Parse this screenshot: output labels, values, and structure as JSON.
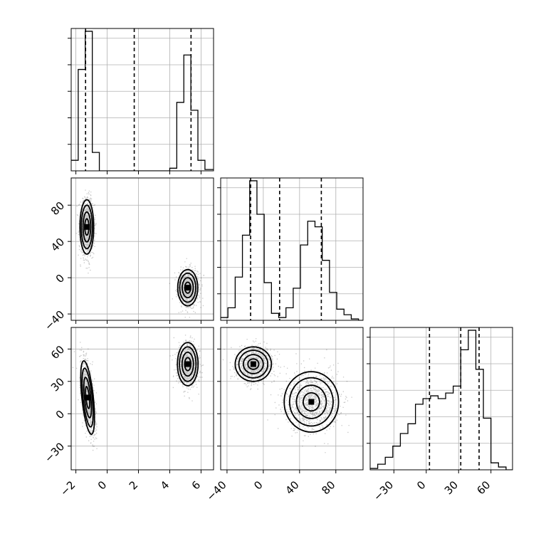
{
  "chart_data": {
    "type": "corner",
    "parameters": [
      {
        "range": [
          -2.3,
          6.8
        ],
        "ticks": [
          -2,
          0,
          2,
          4,
          6
        ],
        "tick_labels": [
          "−2",
          "0",
          "2",
          "4",
          "6"
        ]
      },
      {
        "range": [
          -47,
          110
        ],
        "ticks": [
          -40,
          0,
          40,
          80
        ],
        "tick_labels": [
          "−40",
          "0",
          "40",
          "80"
        ]
      },
      {
        "range": [
          -52,
          80
        ],
        "ticks": [
          -30,
          0,
          30,
          60
        ],
        "tick_labels": [
          "−30",
          "0",
          "30",
          "60"
        ]
      }
    ],
    "histograms": [
      {
        "param": 0,
        "edges": [
          -2.3,
          -1.85,
          -1.4,
          -0.95,
          -0.5,
          -0.05,
          0.4,
          0.85,
          1.3,
          1.75,
          2.2,
          2.65,
          3.1,
          3.55,
          4.0,
          4.45,
          4.9,
          5.35,
          5.8,
          6.25,
          6.8
        ],
        "counts": [
          0.08,
          0.77,
          1.06,
          0.14,
          0,
          0,
          0,
          0,
          0,
          0,
          0,
          0,
          0,
          0,
          0.02,
          0.52,
          0.88,
          0.46,
          0.08,
          0.01
        ],
        "quantiles": [
          -1.38,
          1.73,
          5.36
        ]
      },
      {
        "param": 1,
        "edges": [
          -47,
          -39,
          -31,
          -23,
          -15,
          -7,
          1,
          9,
          17,
          25,
          33,
          41,
          49,
          57,
          65,
          73,
          81,
          89,
          97,
          105,
          110
        ],
        "counts": [
          0.02,
          0.09,
          0.31,
          0.61,
          1.0,
          0.76,
          0.27,
          0.05,
          0.02,
          0.09,
          0.23,
          0.54,
          0.71,
          0.67,
          0.43,
          0.2,
          0.08,
          0.04,
          0.01,
          0.0
        ],
        "quantiles": [
          -14,
          18,
          64
        ]
      },
      {
        "param": 2,
        "edges": [
          -52,
          -45,
          -38,
          -31,
          -24,
          -17,
          -10,
          -3,
          4,
          11,
          18,
          25,
          32,
          39,
          46,
          53,
          60,
          67,
          74,
          80
        ],
        "counts": [
          0.01,
          0.04,
          0.09,
          0.17,
          0.26,
          0.33,
          0.47,
          0.51,
          0.53,
          0.51,
          0.55,
          0.6,
          0.86,
          1.0,
          0.72,
          0.37,
          0.05,
          0.02,
          0.0
        ],
        "quantiles": [
          3,
          32,
          49
        ]
      }
    ],
    "panels_2d": [
      {
        "x_param": 0,
        "y_param": 1,
        "modes": [
          {
            "cx": -1.3,
            "cy": 56,
            "sx": 0.22,
            "sy": 15,
            "rho": 0
          },
          {
            "cx": 5.15,
            "cy": -11,
            "sx": 0.32,
            "sy": 10,
            "rho": 0
          }
        ]
      },
      {
        "x_param": 0,
        "y_param": 2,
        "modes": [
          {
            "cx": -1.25,
            "cy": 15,
            "sx": 0.22,
            "sy": 17,
            "rho": -0.55
          },
          {
            "cx": 5.15,
            "cy": 46,
            "sx": 0.33,
            "sy": 10,
            "rho": 0
          }
        ]
      },
      {
        "x_param": 1,
        "y_param": 2,
        "modes": [
          {
            "cx": -11,
            "cy": 46,
            "sx": 10,
            "sy": 8,
            "rho": 0
          },
          {
            "cx": 53,
            "cy": 11,
            "sx": 15,
            "sy": 14,
            "rho": 0
          }
        ]
      }
    ],
    "contour_levels_sigma": [
      0.6,
      1.1,
      1.6,
      2.0
    ],
    "grid": true
  }
}
